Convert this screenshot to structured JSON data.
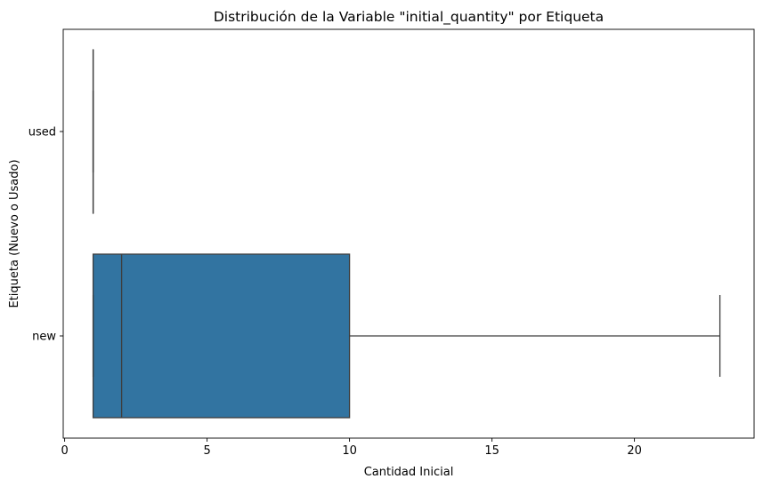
{
  "chart_data": {
    "type": "boxplot",
    "orientation": "horizontal",
    "title": "Distribución de la Variable \"initial_quantity\" por Etiqueta",
    "xlabel": "Cantidad Inicial",
    "ylabel": "Etiqueta (Nuevo o Usado)",
    "xlim": [
      -0.05,
      24.2
    ],
    "xticks": [
      0,
      5,
      10,
      15,
      20
    ],
    "categories": [
      "used",
      "new"
    ],
    "box_color": "#3274a1",
    "line_color": "#3d3d3d",
    "grid": false,
    "boxes": [
      {
        "category": "used",
        "whisker_low": 1,
        "q1": 1,
        "median": 1,
        "q3": 1,
        "whisker_high": 1
      },
      {
        "category": "new",
        "whisker_low": 1,
        "q1": 1,
        "median": 2,
        "q3": 10,
        "whisker_high": 23
      }
    ]
  }
}
